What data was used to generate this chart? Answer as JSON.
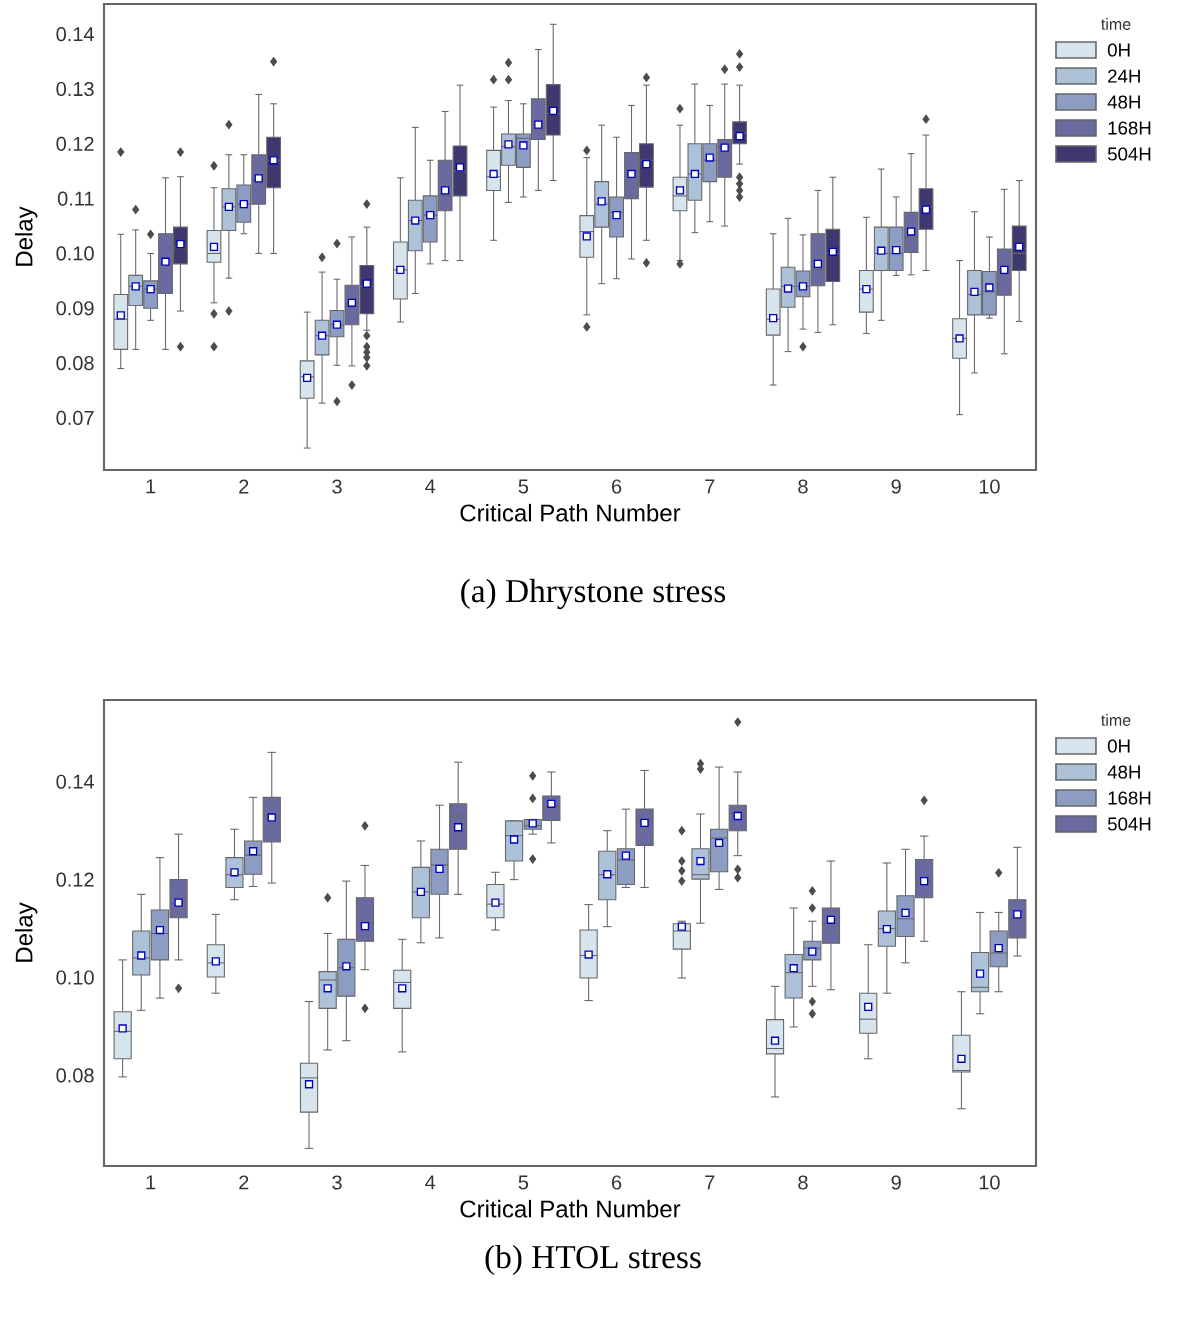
{
  "chart_data": [
    {
      "type": "box",
      "xlabel": "Critical Path Number",
      "ylabel": "Delay",
      "legend_title": "time",
      "legend": "top right",
      "annotations": [
        "(a) Dhrystone stress"
      ],
      "categories": [
        "1",
        "2",
        "3",
        "4",
        "5",
        "6",
        "7",
        "8",
        "9",
        "10"
      ],
      "ylim": [
        0.0605,
        0.1455
      ],
      "yticks": [
        0.07,
        0.08,
        0.09,
        {
          "value": 0.1,
          "label": "0.10"
        },
        0.11,
        0.12,
        0.13,
        0.14
      ],
      "series": [
        {
          "name": "0H",
          "color": "#d6e4ed",
          "boxes": [
            {
              "low": 0.079,
              "q1": 0.0825,
              "median": 0.088,
              "q3": 0.0925,
              "high": 0.1035,
              "mean": 0.0887,
              "outliers": [
                0.1185
              ]
            },
            {
              "low": 0.091,
              "q1": 0.0984,
              "median": 0.1,
              "q3": 0.1042,
              "high": 0.112,
              "mean": 0.1012,
              "outliers": [
                0.116,
                0.089,
                0.083
              ]
            },
            {
              "low": 0.0645,
              "q1": 0.0736,
              "median": 0.0775,
              "q3": 0.0804,
              "high": 0.0893,
              "mean": 0.0773
            },
            {
              "low": 0.0875,
              "q1": 0.0917,
              "median": 0.097,
              "q3": 0.1021,
              "high": 0.1138,
              "mean": 0.097
            },
            {
              "low": 0.1024,
              "q1": 0.1115,
              "median": 0.114,
              "q3": 0.1188,
              "high": 0.1267,
              "mean": 0.1145,
              "outliers": [
                0.1317
              ]
            },
            {
              "low": 0.0888,
              "q1": 0.0993,
              "median": 0.104,
              "q3": 0.1069,
              "high": 0.1175,
              "mean": 0.1031,
              "outliers": [
                0.1188,
                0.0866
              ]
            },
            {
              "low": 0.0987,
              "q1": 0.1078,
              "median": 0.1105,
              "q3": 0.1139,
              "high": 0.1234,
              "mean": 0.1115,
              "outliers": [
                0.1264,
                0.0981
              ]
            },
            {
              "low": 0.076,
              "q1": 0.0851,
              "median": 0.088,
              "q3": 0.0935,
              "high": 0.1036,
              "mean": 0.0882
            },
            {
              "low": 0.0854,
              "q1": 0.0893,
              "median": 0.0935,
              "q3": 0.0969,
              "high": 0.1066,
              "mean": 0.0935
            },
            {
              "low": 0.0706,
              "q1": 0.0809,
              "median": 0.0845,
              "q3": 0.0881,
              "high": 0.0987,
              "mean": 0.0845
            }
          ]
        },
        {
          "name": "24H",
          "color": "#adc1d8",
          "boxes": [
            {
              "low": 0.0825,
              "q1": 0.0905,
              "median": 0.094,
              "q3": 0.096,
              "high": 0.1043,
              "mean": 0.094,
              "outliers": [
                0.108
              ]
            },
            {
              "low": 0.0955,
              "q1": 0.1042,
              "median": 0.1085,
              "q3": 0.1118,
              "high": 0.118,
              "mean": 0.1085,
              "outliers": [
                0.1235,
                0.0895
              ]
            },
            {
              "low": 0.0727,
              "q1": 0.0815,
              "median": 0.085,
              "q3": 0.0878,
              "high": 0.0966,
              "mean": 0.085,
              "outliers": [
                0.0993
              ]
            },
            {
              "low": 0.0927,
              "q1": 0.1005,
              "median": 0.106,
              "q3": 0.1097,
              "high": 0.123,
              "mean": 0.106
            },
            {
              "low": 0.1093,
              "q1": 0.1161,
              "median": 0.1195,
              "q3": 0.1218,
              "high": 0.1279,
              "mean": 0.1199,
              "outliers": [
                0.1317,
                0.1348
              ]
            },
            {
              "low": 0.0945,
              "q1": 0.1048,
              "median": 0.109,
              "q3": 0.1131,
              "high": 0.1234,
              "mean": 0.1095
            },
            {
              "low": 0.1038,
              "q1": 0.1097,
              "median": 0.1145,
              "q3": 0.12,
              "high": 0.1309,
              "mean": 0.1145
            },
            {
              "low": 0.0821,
              "q1": 0.0902,
              "median": 0.094,
              "q3": 0.0975,
              "high": 0.1064,
              "mean": 0.0936
            },
            {
              "low": 0.0878,
              "q1": 0.0969,
              "median": 0.1,
              "q3": 0.1048,
              "high": 0.1154,
              "mean": 0.1005
            },
            {
              "low": 0.0782,
              "q1": 0.0888,
              "median": 0.0925,
              "q3": 0.0969,
              "high": 0.1076,
              "mean": 0.093
            }
          ]
        },
        {
          "name": "48H",
          "color": "#8c9cc3",
          "boxes": [
            {
              "low": 0.0878,
              "q1": 0.09,
              "median": 0.0935,
              "q3": 0.095,
              "high": 0.1,
              "mean": 0.0935,
              "outliers": [
                0.1035
              ]
            },
            {
              "low": 0.1036,
              "q1": 0.1057,
              "median": 0.109,
              "q3": 0.1125,
              "high": 0.118,
              "mean": 0.109
            },
            {
              "low": 0.0796,
              "q1": 0.0848,
              "median": 0.087,
              "q3": 0.0896,
              "high": 0.0953,
              "mean": 0.087,
              "outliers": [
                0.1018,
                0.073
              ]
            },
            {
              "low": 0.0981,
              "q1": 0.1021,
              "median": 0.107,
              "q3": 0.1105,
              "high": 0.117,
              "mean": 0.107
            },
            {
              "low": 0.1103,
              "q1": 0.1157,
              "median": 0.121,
              "q3": 0.1218,
              "high": 0.1273,
              "mean": 0.1197
            },
            {
              "low": 0.0954,
              "q1": 0.103,
              "median": 0.1075,
              "q3": 0.1103,
              "high": 0.1212,
              "mean": 0.107
            },
            {
              "low": 0.1058,
              "q1": 0.1131,
              "median": 0.117,
              "q3": 0.12,
              "high": 0.127,
              "mean": 0.1175
            },
            {
              "low": 0.0862,
              "q1": 0.0921,
              "median": 0.094,
              "q3": 0.0968,
              "high": 0.1034,
              "mean": 0.094,
              "outliers": [
                0.083
              ]
            },
            {
              "low": 0.096,
              "q1": 0.0969,
              "median": 0.1,
              "q3": 0.1048,
              "high": 0.1103,
              "mean": 0.1006
            },
            {
              "low": 0.0882,
              "q1": 0.0888,
              "median": 0.093,
              "q3": 0.0967,
              "high": 0.103,
              "mean": 0.0938
            }
          ]
        },
        {
          "name": "168H",
          "color": "#6a6aa0",
          "boxes": [
            {
              "low": 0.0825,
              "q1": 0.0927,
              "median": 0.098,
              "q3": 0.1036,
              "high": 0.1138,
              "mean": 0.0985
            },
            {
              "low": 0.1,
              "q1": 0.109,
              "median": 0.1135,
              "q3": 0.118,
              "high": 0.129,
              "mean": 0.1137
            },
            {
              "low": 0.0795,
              "q1": 0.087,
              "median": 0.091,
              "q3": 0.0942,
              "high": 0.103,
              "mean": 0.091,
              "outliers": [
                0.076
              ]
            },
            {
              "low": 0.0987,
              "q1": 0.1078,
              "median": 0.1105,
              "q3": 0.117,
              "high": 0.1259,
              "mean": 0.1115
            },
            {
              "low": 0.1115,
              "q1": 0.1208,
              "median": 0.1225,
              "q3": 0.1282,
              "high": 0.1372,
              "mean": 0.1235
            },
            {
              "low": 0.099,
              "q1": 0.11,
              "median": 0.115,
              "q3": 0.1184,
              "high": 0.127,
              "mean": 0.1145
            },
            {
              "low": 0.105,
              "q1": 0.1139,
              "median": 0.1195,
              "q3": 0.1208,
              "high": 0.1309,
              "mean": 0.1193,
              "outliers": [
                0.1336
              ]
            },
            {
              "low": 0.0856,
              "q1": 0.0941,
              "median": 0.097,
              "q3": 0.1036,
              "high": 0.1115,
              "mean": 0.0981
            },
            {
              "low": 0.0961,
              "q1": 0.1002,
              "median": 0.103,
              "q3": 0.1075,
              "high": 0.1182,
              "mean": 0.104
            },
            {
              "low": 0.0817,
              "q1": 0.0924,
              "median": 0.097,
              "q3": 0.1008,
              "high": 0.1117,
              "mean": 0.097
            }
          ]
        },
        {
          "name": "504H",
          "color": "#3f3770",
          "boxes": [
            {
              "low": 0.0895,
              "q1": 0.0981,
              "median": 0.101,
              "q3": 0.1048,
              "high": 0.114,
              "mean": 0.1017,
              "outliers": [
                0.083,
                0.1185
              ]
            },
            {
              "low": 0.1,
              "q1": 0.112,
              "median": 0.117,
              "q3": 0.1212,
              "high": 0.1273,
              "mean": 0.117,
              "outliers": [
                0.135
              ]
            },
            {
              "low": 0.086,
              "q1": 0.089,
              "median": 0.094,
              "q3": 0.0978,
              "high": 0.1048,
              "mean": 0.0945,
              "outliers": [
                0.109,
                0.085,
                0.083,
                0.082,
                0.081,
                0.0795
              ]
            },
            {
              "low": 0.0987,
              "q1": 0.1105,
              "median": 0.115,
              "q3": 0.1196,
              "high": 0.1307,
              "mean": 0.1157
            },
            {
              "low": 0.1133,
              "q1": 0.1216,
              "median": 0.1255,
              "q3": 0.1308,
              "high": 0.1418,
              "mean": 0.126
            },
            {
              "low": 0.1024,
              "q1": 0.1121,
              "median": 0.117,
              "q3": 0.12,
              "high": 0.1307,
              "mean": 0.1163,
              "outliers": [
                0.0983,
                0.1321
              ]
            },
            {
              "low": 0.1163,
              "q1": 0.12,
              "median": 0.122,
              "q3": 0.124,
              "high": 0.1307,
              "mean": 0.1214,
              "outliers": [
                0.1364,
                0.134,
                0.1139,
                0.1127,
                0.1115,
                0.1103
              ]
            },
            {
              "low": 0.087,
              "q1": 0.0949,
              "median": 0.1,
              "q3": 0.1044,
              "high": 0.1139,
              "mean": 0.1003
            },
            {
              "low": 0.0969,
              "q1": 0.1044,
              "median": 0.1085,
              "q3": 0.1118,
              "high": 0.1216,
              "mean": 0.108,
              "outliers": [
                0.1245
              ]
            },
            {
              "low": 0.0876,
              "q1": 0.0969,
              "median": 0.1,
              "q3": 0.105,
              "high": 0.1133,
              "mean": 0.1012
            }
          ]
        }
      ]
    },
    {
      "type": "box",
      "xlabel": "Critical Path Number",
      "ylabel": "Delay",
      "legend_title": "time",
      "legend": "top right",
      "annotations": [
        "(b) HTOL stress"
      ],
      "categories": [
        "1",
        "2",
        "3",
        "4",
        "5",
        "6",
        "7",
        "8",
        "9",
        "10"
      ],
      "ylim": [
        0.0615,
        0.1567
      ],
      "yticks": [
        0.08,
        {
          "value": 0.1,
          "label": "0.10"
        },
        0.12,
        0.14
      ],
      "series": [
        {
          "name": "0H",
          "color": "#d6e4ed",
          "boxes": [
            {
              "low": 0.0797,
              "q1": 0.0834,
              "median": 0.089,
              "q3": 0.093,
              "high": 0.1036,
              "mean": 0.0896
            },
            {
              "low": 0.0968,
              "q1": 0.1001,
              "median": 0.103,
              "q3": 0.1067,
              "high": 0.1129,
              "mean": 0.1033
            },
            {
              "low": 0.0651,
              "q1": 0.0725,
              "median": 0.0795,
              "q3": 0.0825,
              "high": 0.0951,
              "mean": 0.0782
            },
            {
              "low": 0.0848,
              "q1": 0.0937,
              "median": 0.099,
              "q3": 0.1015,
              "high": 0.1078,
              "mean": 0.0978
            },
            {
              "low": 0.1097,
              "q1": 0.1122,
              "median": 0.115,
              "q3": 0.119,
              "high": 0.1215,
              "mean": 0.1153
            },
            {
              "low": 0.0953,
              "q1": 0.0999,
              "median": 0.1045,
              "q3": 0.1097,
              "high": 0.1149,
              "mean": 0.1047
            },
            {
              "low": 0.0999,
              "q1": 0.1058,
              "median": 0.1095,
              "q3": 0.111,
              "high": 0.1115,
              "mean": 0.1104,
              "outliers": [
                0.13,
                0.1238,
                0.1218,
                0.1197
              ]
            },
            {
              "low": 0.0756,
              "q1": 0.0844,
              "median": 0.0855,
              "q3": 0.0914,
              "high": 0.0982,
              "mean": 0.0871
            },
            {
              "low": 0.0834,
              "q1": 0.0886,
              "median": 0.0915,
              "q3": 0.0968,
              "high": 0.1067,
              "mean": 0.094
            },
            {
              "low": 0.0732,
              "q1": 0.0807,
              "median": 0.081,
              "q3": 0.0882,
              "high": 0.0971,
              "mean": 0.0834
            }
          ]
        },
        {
          "name": "48H",
          "color": "#adc1d8",
          "boxes": [
            {
              "low": 0.0933,
              "q1": 0.1005,
              "median": 0.104,
              "q3": 0.1095,
              "high": 0.117,
              "mean": 0.1045
            },
            {
              "low": 0.1159,
              "q1": 0.1184,
              "median": 0.121,
              "q3": 0.1245,
              "high": 0.1303,
              "mean": 0.1215
            },
            {
              "low": 0.0852,
              "q1": 0.0937,
              "median": 0.0995,
              "q3": 0.1012,
              "high": 0.109,
              "mean": 0.0978,
              "outliers": [
                0.1163
              ]
            },
            {
              "low": 0.1071,
              "q1": 0.1122,
              "median": 0.1175,
              "q3": 0.1225,
              "high": 0.1279,
              "mean": 0.1175
            },
            {
              "low": 0.12,
              "q1": 0.1238,
              "median": 0.129,
              "q3": 0.132,
              "high": 0.132,
              "mean": 0.1282
            },
            {
              "low": 0.1104,
              "q1": 0.1159,
              "median": 0.121,
              "q3": 0.1258,
              "high": 0.13,
              "mean": 0.1211
            },
            {
              "low": 0.1111,
              "q1": 0.1201,
              "median": 0.121,
              "q3": 0.1263,
              "high": 0.1334,
              "mean": 0.1238,
              "outliers": [
                0.1437,
                0.1426
              ]
            },
            {
              "low": 0.0899,
              "q1": 0.0958,
              "median": 0.101,
              "q3": 0.1047,
              "high": 0.1142,
              "mean": 0.1019
            },
            {
              "low": 0.0968,
              "q1": 0.1064,
              "median": 0.11,
              "q3": 0.1136,
              "high": 0.1234,
              "mean": 0.1099
            },
            {
              "low": 0.0926,
              "q1": 0.0971,
              "median": 0.098,
              "q3": 0.1051,
              "high": 0.1133,
              "mean": 0.1008
            }
          ]
        },
        {
          "name": "168H",
          "color": "#8c9cc3",
          "boxes": [
            {
              "low": 0.0958,
              "q1": 0.1036,
              "median": 0.109,
              "q3": 0.1138,
              "high": 0.1245,
              "mean": 0.1097
            },
            {
              "low": 0.1186,
              "q1": 0.1211,
              "median": 0.125,
              "q3": 0.1279,
              "high": 0.1368,
              "mean": 0.1258
            },
            {
              "low": 0.0871,
              "q1": 0.0962,
              "median": 0.102,
              "q3": 0.1078,
              "high": 0.1197,
              "mean": 0.1023
            },
            {
              "low": 0.1081,
              "q1": 0.117,
              "median": 0.123,
              "q3": 0.1262,
              "high": 0.1352,
              "mean": 0.1222
            },
            {
              "low": 0.1293,
              "q1": 0.1303,
              "median": 0.131,
              "q3": 0.1323,
              "high": 0.1323,
              "mean": 0.1315,
              "outliers": [
                0.1412,
                0.1366,
                0.1242
              ]
            },
            {
              "low": 0.1184,
              "q1": 0.119,
              "median": 0.124,
              "q3": 0.1263,
              "high": 0.1344,
              "mean": 0.1249
            },
            {
              "low": 0.118,
              "q1": 0.1216,
              "median": 0.1285,
              "q3": 0.1303,
              "high": 0.143,
              "mean": 0.1275
            },
            {
              "low": 0.0982,
              "q1": 0.1036,
              "median": 0.106,
              "q3": 0.1074,
              "high": 0.1115,
              "mean": 0.1053,
              "outliers": [
                0.1177,
                0.1142,
                0.0951,
                0.0926
              ]
            },
            {
              "low": 0.103,
              "q1": 0.1084,
              "median": 0.112,
              "q3": 0.1167,
              "high": 0.1262,
              "mean": 0.1132
            },
            {
              "low": 0.0971,
              "q1": 0.1022,
              "median": 0.105,
              "q3": 0.1095,
              "high": 0.1133,
              "mean": 0.106,
              "outliers": [
                0.1214
              ]
            }
          ]
        },
        {
          "name": "504H",
          "color": "#6a6aa0",
          "boxes": [
            {
              "low": 0.1036,
              "q1": 0.1122,
              "median": 0.115,
              "q3": 0.12,
              "high": 0.1293,
              "mean": 0.1153,
              "outliers": [
                0.0978
              ]
            },
            {
              "low": 0.1193,
              "q1": 0.1277,
              "median": 0.133,
              "q3": 0.1368,
              "high": 0.146,
              "mean": 0.1327
            },
            {
              "low": 0.1016,
              "q1": 0.1074,
              "median": 0.111,
              "q3": 0.1163,
              "high": 0.1229,
              "mean": 0.1105,
              "outliers": [
                0.131,
                0.0937
              ]
            },
            {
              "low": 0.117,
              "q1": 0.1262,
              "median": 0.133,
              "q3": 0.1355,
              "high": 0.144,
              "mean": 0.1307
            },
            {
              "low": 0.1275,
              "q1": 0.1321,
              "median": 0.135,
              "q3": 0.1371,
              "high": 0.142,
              "mean": 0.1355
            },
            {
              "low": 0.1184,
              "q1": 0.127,
              "median": 0.132,
              "q3": 0.1344,
              "high": 0.1423,
              "mean": 0.1316
            },
            {
              "low": 0.1249,
              "q1": 0.13,
              "median": 0.1335,
              "q3": 0.1352,
              "high": 0.142,
              "mean": 0.133,
              "outliers": [
                0.1522,
                0.1221,
                0.1204
              ]
            },
            {
              "low": 0.0975,
              "q1": 0.107,
              "median": 0.111,
              "q3": 0.1142,
              "high": 0.1238,
              "mean": 0.1118
            },
            {
              "low": 0.1074,
              "q1": 0.1163,
              "median": 0.1195,
              "q3": 0.1241,
              "high": 0.1289,
              "mean": 0.1197,
              "outliers": [
                0.1362
              ]
            },
            {
              "low": 0.1044,
              "q1": 0.1081,
              "median": 0.112,
              "q3": 0.1159,
              "high": 0.1266,
              "mean": 0.1129
            }
          ]
        }
      ]
    }
  ]
}
